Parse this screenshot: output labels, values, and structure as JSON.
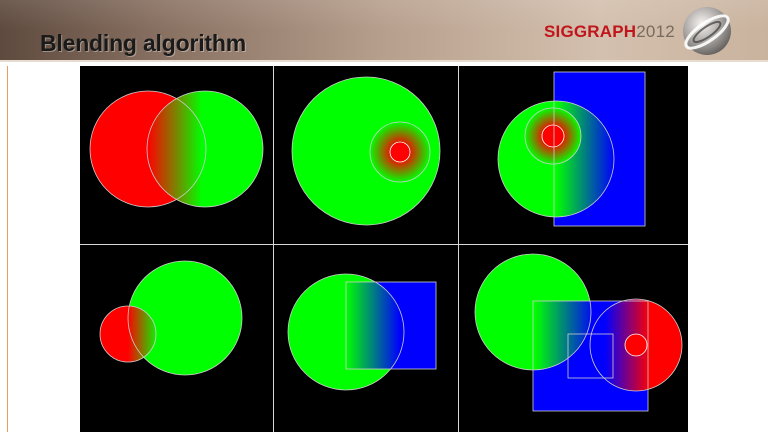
{
  "slide": {
    "title": "Blending algorithm"
  },
  "logo": {
    "name": "SIGGRAPH",
    "year": "2012"
  },
  "colors": {
    "red": "#ff0000",
    "green": "#00ff00",
    "blue": "#0000ff",
    "outline": "#cccccc",
    "background": "#000000"
  },
  "figure": {
    "rows": 2,
    "columns": 3,
    "panels": [
      "two-circles-red-green",
      "green-circle-red-spot",
      "green-circle-red-spot-blue-rect",
      "small-red-circle-green-circle",
      "green-circle-blue-square",
      "green-circle-blue-rect-red-circle"
    ]
  }
}
